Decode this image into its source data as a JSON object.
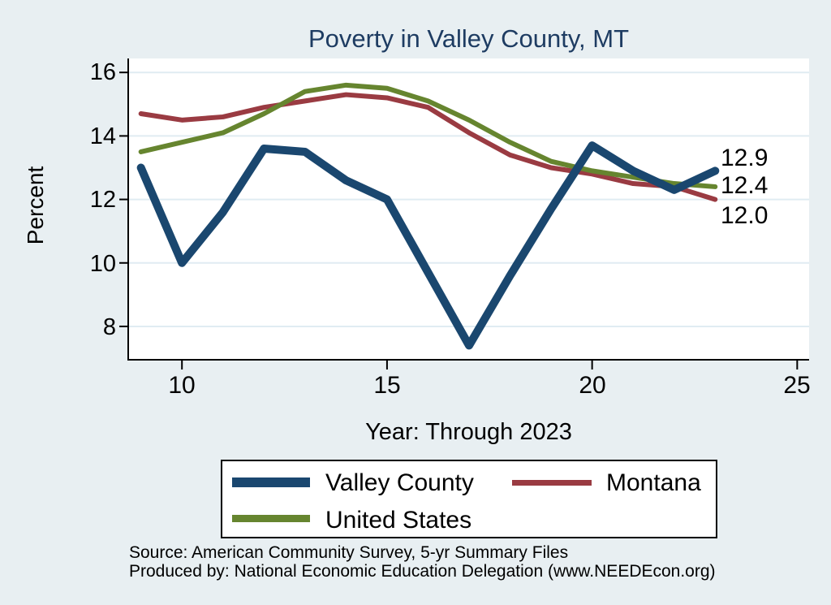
{
  "figure": {
    "title": "Poverty in Valley County, MT",
    "x_axis_label": "Year: Through 2023",
    "y_axis_label": "Percent",
    "source_line1": "Source: American Community Survey, 5-yr Summary Files",
    "source_line2": "Produced by: National Economic Education Delegation (www.NEEDEcon.org)"
  },
  "legend": {
    "position": "bottom-center",
    "items": [
      {
        "label": "Valley County",
        "color": "#1a476f",
        "swatch_thickness": 12
      },
      {
        "label": "Montana",
        "color": "#9a3b42",
        "swatch_thickness": 7
      },
      {
        "label": "United States",
        "color": "#66852f",
        "swatch_thickness": 9
      }
    ]
  },
  "colors": {
    "figure_background": "#e8eff2",
    "plot_background": "#ffffff",
    "gridline": "#e0ecf2",
    "axis": "#000000",
    "title_text": "#1e3c62",
    "valley_county_line": "#1a476f",
    "montana_line": "#9a3b42",
    "united_states_line": "#66852f"
  },
  "chart_data": {
    "type": "line",
    "title": "Poverty in Valley County, MT",
    "xlabel": "Year: Through 2023",
    "ylabel": "Percent",
    "x": [
      9,
      10,
      11,
      12,
      13,
      14,
      15,
      16,
      17,
      18,
      19,
      20,
      21,
      22,
      23
    ],
    "series": [
      {
        "name": "Valley County",
        "color": "#1a476f",
        "width": 10,
        "values": [
          13.0,
          10.0,
          11.6,
          13.6,
          13.5,
          12.6,
          12.0,
          9.7,
          7.4,
          9.6,
          11.7,
          13.7,
          12.9,
          12.3,
          12.9
        ]
      },
      {
        "name": "Montana",
        "color": "#9a3b42",
        "width": 6,
        "values": [
          14.7,
          14.5,
          14.6,
          14.9,
          15.1,
          15.3,
          15.2,
          14.9,
          14.1,
          13.4,
          13.0,
          12.8,
          12.5,
          12.4,
          12.0
        ]
      },
      {
        "name": "United States",
        "color": "#66852f",
        "width": 6,
        "values": [
          13.5,
          13.8,
          14.1,
          14.7,
          15.4,
          15.6,
          15.5,
          15.1,
          14.5,
          13.8,
          13.2,
          12.9,
          12.7,
          12.5,
          12.4
        ]
      }
    ],
    "xticks": [
      10,
      15,
      20,
      25
    ],
    "yticks_top_to_bottom": [
      16,
      14,
      12,
      10,
      8
    ],
    "xtick_labels": [
      "10",
      "15",
      "20",
      "25"
    ],
    "ytick_labels": [
      "16",
      "14",
      "12",
      "10",
      "8"
    ],
    "xlim": [
      8.69,
      25.29
    ],
    "ylim": [
      6.95,
      16.44
    ],
    "grid": "horizontal",
    "legend_position": "below",
    "end_labels": [
      {
        "series": "Valley County",
        "text": "12.9",
        "value": 12.9
      },
      {
        "series": "United States",
        "text": "12.4",
        "value": 12.4
      },
      {
        "series": "Montana",
        "text": "12.0",
        "value": 12.0
      }
    ]
  }
}
